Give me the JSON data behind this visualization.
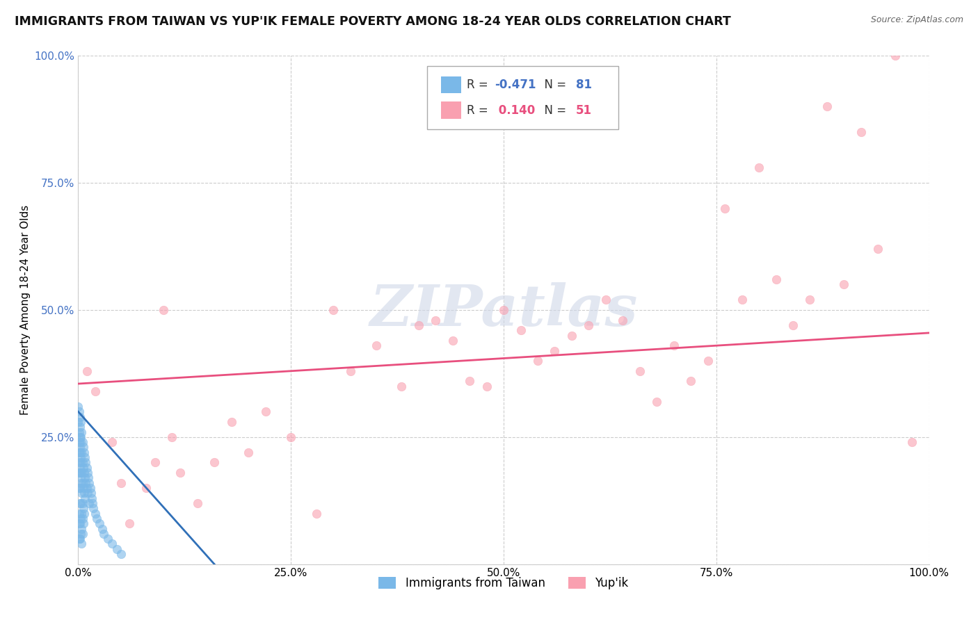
{
  "title": "IMMIGRANTS FROM TAIWAN VS YUP'IK FEMALE POVERTY AMONG 18-24 YEAR OLDS CORRELATION CHART",
  "source": "Source: ZipAtlas.com",
  "ylabel": "Female Poverty Among 18-24 Year Olds",
  "watermark": "ZIPatlas",
  "xlim": [
    0.0,
    1.0
  ],
  "ylim": [
    0.0,
    1.0
  ],
  "xticks": [
    0.0,
    0.25,
    0.5,
    0.75,
    1.0
  ],
  "xtick_labels": [
    "0.0%",
    "25.0%",
    "50.0%",
    "75.0%",
    "100.0%"
  ],
  "yticks": [
    0.0,
    0.25,
    0.5,
    0.75,
    1.0
  ],
  "ytick_labels": [
    "",
    "25.0%",
    "50.0%",
    "75.0%",
    "100.0%"
  ],
  "series1_color": "#7ab8e8",
  "series2_color": "#f9a0b0",
  "series1_label": "Immigrants from Taiwan",
  "series2_label": "Yup'ik",
  "R1": -0.471,
  "N1": 81,
  "R2": 0.14,
  "N2": 51,
  "legend_box_color1": "#7ab8e8",
  "legend_box_color2": "#f9a0b0",
  "series1_x": [
    0.0,
    0.0,
    0.001,
    0.001,
    0.001,
    0.001,
    0.001,
    0.001,
    0.001,
    0.001,
    0.001,
    0.001,
    0.002,
    0.002,
    0.002,
    0.002,
    0.002,
    0.002,
    0.002,
    0.002,
    0.002,
    0.002,
    0.002,
    0.003,
    0.003,
    0.003,
    0.003,
    0.003,
    0.003,
    0.003,
    0.003,
    0.003,
    0.003,
    0.004,
    0.004,
    0.004,
    0.004,
    0.004,
    0.004,
    0.004,
    0.005,
    0.005,
    0.005,
    0.005,
    0.005,
    0.005,
    0.006,
    0.006,
    0.006,
    0.006,
    0.006,
    0.007,
    0.007,
    0.007,
    0.007,
    0.008,
    0.008,
    0.008,
    0.009,
    0.009,
    0.01,
    0.01,
    0.011,
    0.011,
    0.012,
    0.013,
    0.013,
    0.014,
    0.015,
    0.016,
    0.017,
    0.018,
    0.02,
    0.022,
    0.025,
    0.028,
    0.03,
    0.035,
    0.04,
    0.045,
    0.05
  ],
  "series1_y": [
    0.28,
    0.31,
    0.3,
    0.26,
    0.22,
    0.18,
    0.15,
    0.1,
    0.08,
    0.05,
    0.2,
    0.24,
    0.29,
    0.25,
    0.22,
    0.19,
    0.15,
    0.12,
    0.08,
    0.05,
    0.27,
    0.23,
    0.18,
    0.28,
    0.24,
    0.2,
    0.16,
    0.12,
    0.09,
    0.06,
    0.25,
    0.21,
    0.17,
    0.26,
    0.22,
    0.18,
    0.14,
    0.1,
    0.07,
    0.04,
    0.24,
    0.2,
    0.16,
    0.12,
    0.09,
    0.06,
    0.23,
    0.19,
    0.15,
    0.11,
    0.08,
    0.22,
    0.18,
    0.14,
    0.1,
    0.21,
    0.17,
    0.13,
    0.2,
    0.16,
    0.19,
    0.15,
    0.18,
    0.14,
    0.17,
    0.16,
    0.12,
    0.15,
    0.14,
    0.13,
    0.12,
    0.11,
    0.1,
    0.09,
    0.08,
    0.07,
    0.06,
    0.05,
    0.04,
    0.03,
    0.02
  ],
  "series2_x": [
    0.01,
    0.02,
    0.04,
    0.05,
    0.06,
    0.08,
    0.09,
    0.1,
    0.11,
    0.12,
    0.14,
    0.16,
    0.18,
    0.2,
    0.22,
    0.25,
    0.28,
    0.3,
    0.32,
    0.35,
    0.38,
    0.4,
    0.42,
    0.44,
    0.46,
    0.48,
    0.5,
    0.52,
    0.54,
    0.56,
    0.58,
    0.6,
    0.62,
    0.64,
    0.66,
    0.68,
    0.7,
    0.72,
    0.74,
    0.76,
    0.78,
    0.8,
    0.82,
    0.84,
    0.86,
    0.88,
    0.9,
    0.92,
    0.94,
    0.96,
    0.98
  ],
  "series2_y": [
    0.38,
    0.34,
    0.24,
    0.16,
    0.08,
    0.15,
    0.2,
    0.5,
    0.25,
    0.18,
    0.12,
    0.2,
    0.28,
    0.22,
    0.3,
    0.25,
    0.1,
    0.5,
    0.38,
    0.43,
    0.35,
    0.47,
    0.48,
    0.44,
    0.36,
    0.35,
    0.5,
    0.46,
    0.4,
    0.42,
    0.45,
    0.47,
    0.52,
    0.48,
    0.38,
    0.32,
    0.43,
    0.36,
    0.4,
    0.7,
    0.52,
    0.78,
    0.56,
    0.47,
    0.52,
    0.9,
    0.55,
    0.85,
    0.62,
    1.0,
    0.24
  ],
  "background_color": "#ffffff",
  "grid_color": "#cccccc",
  "title_fontsize": 12.5,
  "axis_fontsize": 11,
  "tick_fontsize": 11,
  "ytick_color": "#4472c4",
  "legend_R1_color": "#4472c4",
  "legend_R2_color": "#e84f7e",
  "legend_N1_color": "#4472c4",
  "legend_N2_color": "#e84f7e"
}
